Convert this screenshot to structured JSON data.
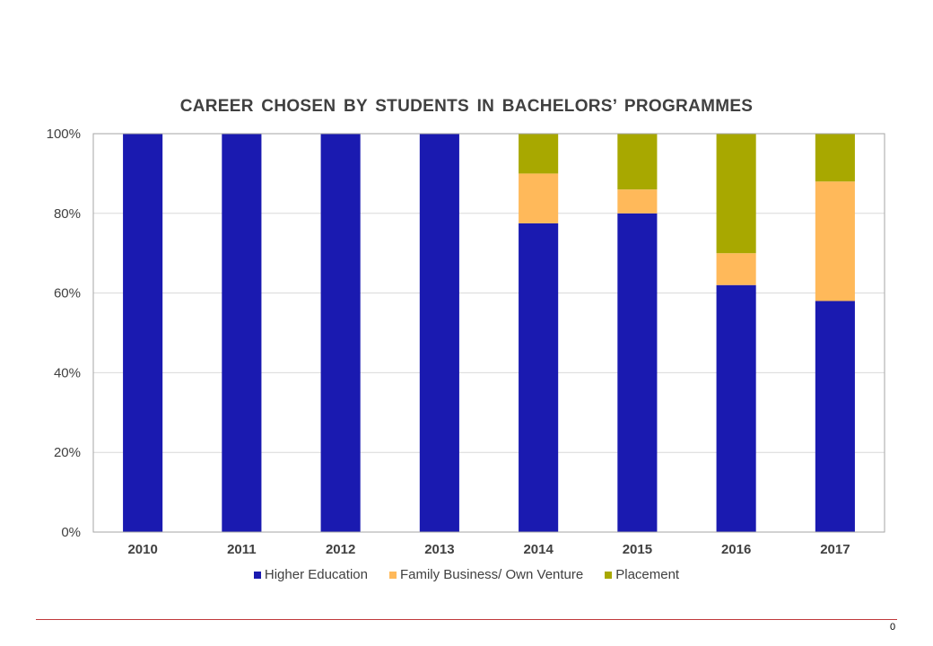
{
  "chart_data": {
    "type": "bar",
    "stacked": true,
    "title": "CAREER CHOSEN  BY STUDENTS  IN  BACHELORS’  PROGRAMMES",
    "categories": [
      "2010",
      "2011",
      "2012",
      "2013",
      "2014",
      "2015",
      "2016",
      "2017"
    ],
    "series": [
      {
        "name": "Higher Education",
        "color": "#1a1ab0",
        "values": [
          100,
          100,
          100,
          100,
          77.5,
          80,
          62,
          58
        ]
      },
      {
        "name": "Family Business/ Own Venture",
        "color": "#ffb95a",
        "values": [
          0,
          0,
          0,
          0,
          12.5,
          6,
          8,
          30
        ]
      },
      {
        "name": "Placement",
        "color": "#a8a800",
        "values": [
          0,
          0,
          0,
          0,
          10,
          14,
          30,
          12
        ]
      }
    ],
    "ylim": [
      0,
      100
    ],
    "yticks": [
      "0%",
      "20%",
      "40%",
      "60%",
      "80%",
      "100%"
    ],
    "ytick_values": [
      0,
      20,
      40,
      60,
      80,
      100
    ],
    "grid": true,
    "legend_position": "bottom"
  },
  "page": {
    "number": "0"
  }
}
